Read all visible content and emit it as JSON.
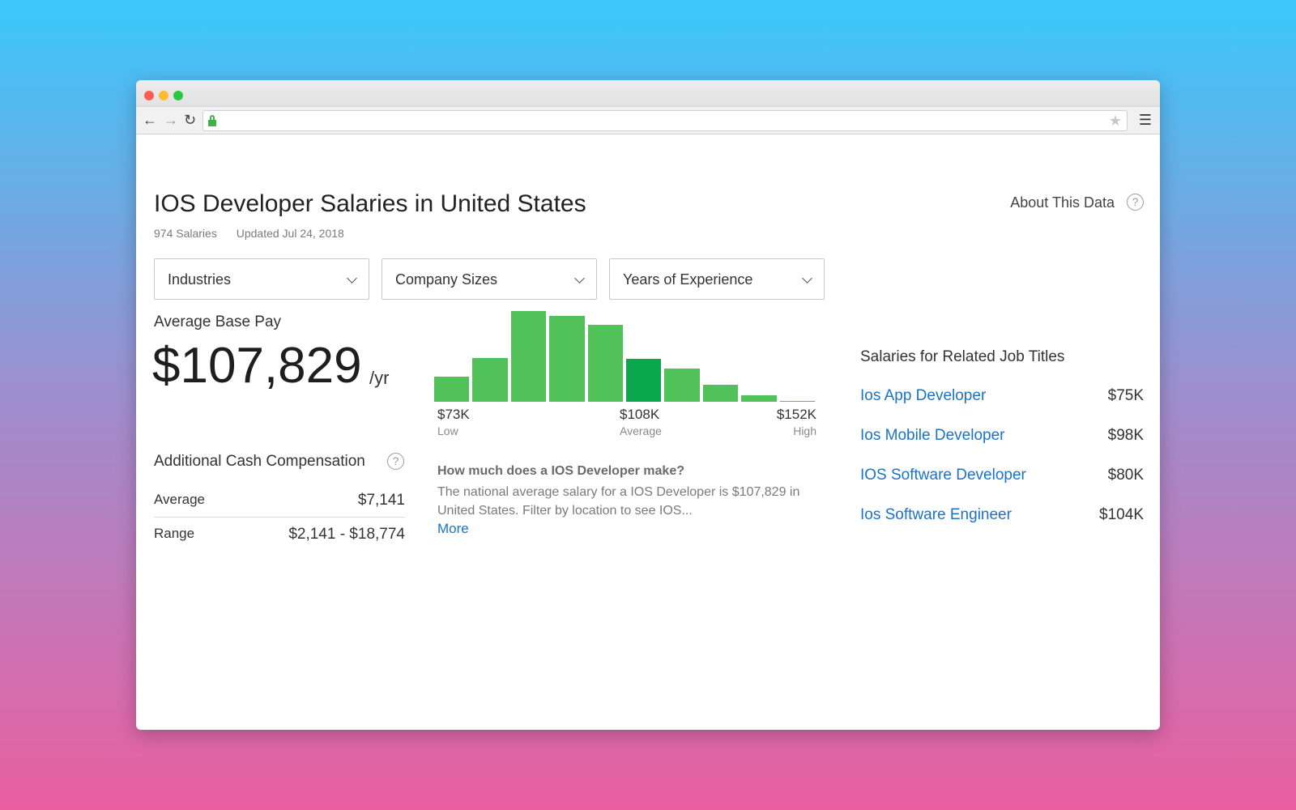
{
  "page": {
    "title": "IOS Developer Salaries in United States",
    "salary_count": "974 Salaries",
    "updated": "Updated Jul 24, 2018",
    "about_label": "About This Data",
    "question_mark": "?"
  },
  "filters": {
    "industries": "Industries",
    "company_sizes": "Company Sizes",
    "years_experience": "Years of Experience"
  },
  "base_pay": {
    "label": "Average Base Pay",
    "value": "$107,829",
    "unit": "/yr"
  },
  "additional_cash": {
    "title": "Additional Cash Compensation",
    "average_label": "Average",
    "average_value": "$7,141",
    "range_label": "Range",
    "range_value": "$2,141 - $18,774"
  },
  "chart_data": {
    "type": "bar",
    "title": "",
    "xlabel": "",
    "ylabel": "",
    "values": [
      28,
      48,
      100,
      95,
      85,
      47,
      37,
      19,
      7,
      1
    ],
    "highlight_index": 5,
    "ylim": [
      0,
      100
    ],
    "ticks": [
      {
        "value": "$73K",
        "sub": "Low"
      },
      {
        "value": "$108K",
        "sub": "Average"
      },
      {
        "value": "$152K",
        "sub": "High"
      }
    ],
    "colors": {
      "bar": "#51c25a",
      "highlight": "#0aa74d"
    }
  },
  "description": {
    "heading": "How much does a IOS Developer make?",
    "text": "The national average salary for a IOS Developer is $107,829 in United States. Filter by location to see IOS...",
    "more_link": "More"
  },
  "related": {
    "title": "Salaries for Related Job Titles",
    "items": [
      {
        "job": "Ios App Developer",
        "salary": "$75K"
      },
      {
        "job": "Ios Mobile Developer",
        "salary": "$98K"
      },
      {
        "job": "IOS Software Developer",
        "salary": "$80K"
      },
      {
        "job": "Ios Software Engineer",
        "salary": "$104K"
      }
    ]
  },
  "colors": {
    "link": "#1a73c8",
    "accent_green": "#51c25a"
  }
}
